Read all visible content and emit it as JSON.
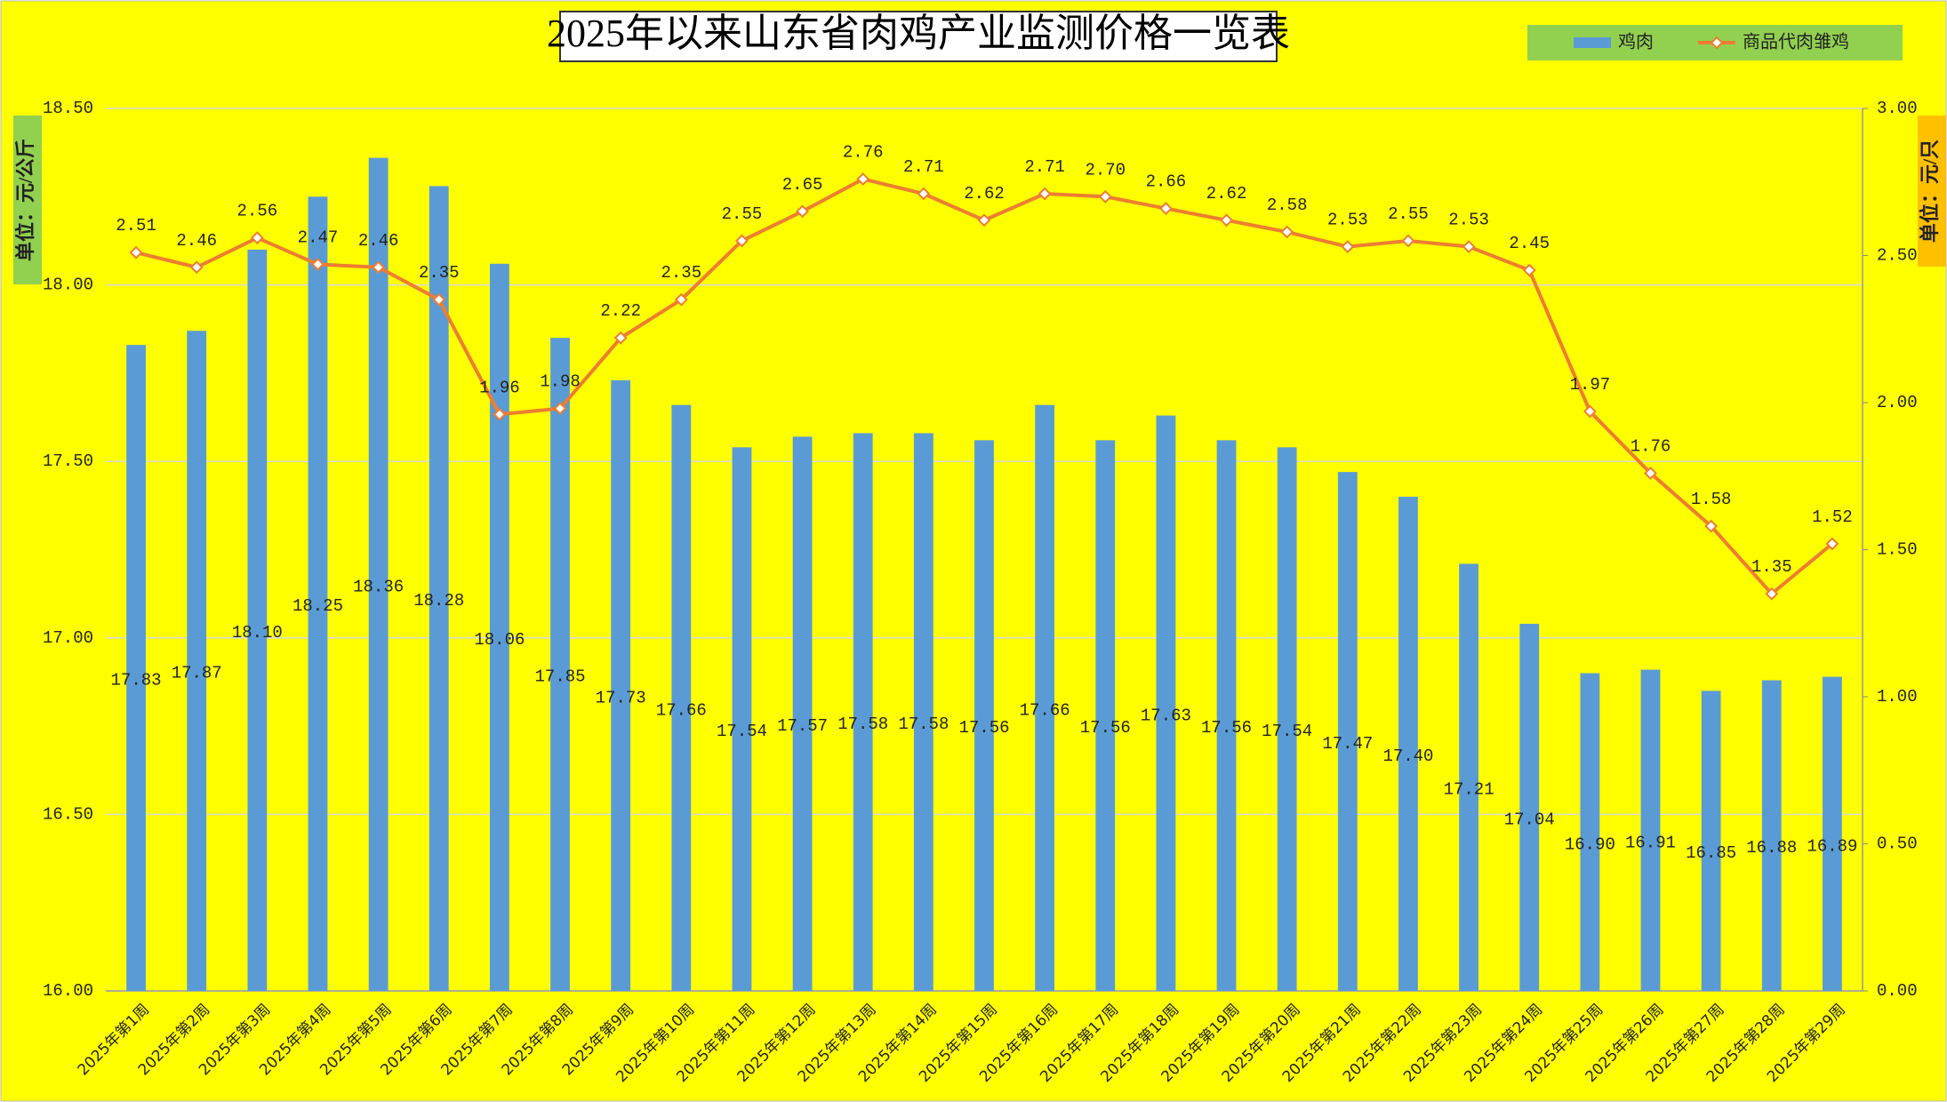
{
  "chart_data": {
    "type": "combo",
    "title": "2025年以来山东省肉鸡产业监测价格一览表",
    "y_label": "单位：元/公斤",
    "y2_label": "单位：元/只",
    "categories": [
      "2025年第1周",
      "2025年第2周",
      "2025年第3周",
      "2025年第4周",
      "2025年第5周",
      "2025年第6周",
      "2025年第7周",
      "2025年第8周",
      "2025年第9周",
      "2025年第10周",
      "2025年第11周",
      "2025年第12周",
      "2025年第13周",
      "2025年第14周",
      "2025年第15周",
      "2025年第16周",
      "2025年第17周",
      "2025年第18周",
      "2025年第19周",
      "2025年第20周",
      "2025年第21周",
      "2025年第22周",
      "2025年第23周",
      "2025年第24周",
      "2025年第25周",
      "2025年第26周",
      "2025年第27周",
      "2025年第28周",
      "2025年第29周"
    ],
    "series": [
      {
        "name": "鸡肉",
        "type": "bar",
        "color": "#5b9bd5",
        "values": [
          17.83,
          17.87,
          18.1,
          18.25,
          18.36,
          18.28,
          18.06,
          17.85,
          17.73,
          17.66,
          17.54,
          17.57,
          17.58,
          17.58,
          17.56,
          17.66,
          17.56,
          17.63,
          17.56,
          17.54,
          17.47,
          17.4,
          17.21,
          17.04,
          16.9,
          16.91,
          16.85,
          16.88,
          16.89
        ],
        "value_labels": [
          "17.83",
          "17.87",
          "18.10",
          "18.25",
          "18.36",
          "18.28",
          "18.06",
          "17.85",
          "17.73",
          "17.66",
          "17.54",
          "17.57",
          "17.58",
          "17.58",
          "17.56",
          "17.66",
          "17.56",
          "17.63",
          "17.56",
          "17.54",
          "17.47",
          "17.40",
          "17.21",
          "17.04",
          "16.90",
          "16.91",
          "16.85",
          "16.88",
          "16.89"
        ]
      },
      {
        "name": "商品代肉雏鸡",
        "type": "line",
        "axis": "y2",
        "color": "#ed7d31",
        "values": [
          2.51,
          2.46,
          2.56,
          2.47,
          2.46,
          2.35,
          1.96,
          1.98,
          2.22,
          2.35,
          2.55,
          2.65,
          2.76,
          2.71,
          2.62,
          2.71,
          2.7,
          2.66,
          2.62,
          2.58,
          2.53,
          2.55,
          2.53,
          2.45,
          1.97,
          1.76,
          1.58,
          1.35,
          1.52
        ],
        "value_labels": [
          "2.51",
          "2.46",
          "2.56",
          "2.47",
          "2.46",
          "2.35",
          "1.96",
          "1.98",
          "2.22",
          "2.35",
          "2.55",
          "2.65",
          "2.76",
          "2.71",
          "2.62",
          "2.71",
          "2.70",
          "2.66",
          "2.62",
          "2.58",
          "2.53",
          "2.55",
          "2.53",
          "2.45",
          "1.97",
          "1.76",
          "1.58",
          "1.35",
          "1.52"
        ]
      }
    ],
    "ylim": [
      16,
      18.5
    ],
    "yticks": [
      {
        "value": 16,
        "label": "16.00"
      },
      {
        "value": 16.5,
        "label": "16.50"
      },
      {
        "value": 17,
        "label": "17.00"
      },
      {
        "value": 17.5,
        "label": "17.50"
      },
      {
        "value": 18,
        "label": "18.00"
      },
      {
        "value": 18.5,
        "label": "18.50"
      }
    ],
    "y2lim": [
      0,
      3
    ],
    "y2ticks": [
      {
        "value": 0,
        "label": "0.00"
      },
      {
        "value": 0.5,
        "label": "0.50"
      },
      {
        "value": 1,
        "label": "1.00"
      },
      {
        "value": 1.5,
        "label": "1.50"
      },
      {
        "value": 2,
        "label": "2.00"
      },
      {
        "value": 2.5,
        "label": "2.50"
      },
      {
        "value": 3,
        "label": "3.00"
      }
    ],
    "grid": true,
    "legend": "top-right"
  }
}
